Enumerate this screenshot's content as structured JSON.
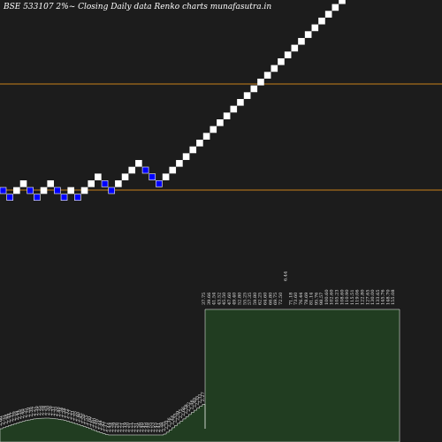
{
  "header": {
    "title": "BSE 533107 2%~ Closing Daily data Renko charts munafasutra.in"
  },
  "colors": {
    "background": "#1c1c1c",
    "up_brick": "#ffffff",
    "down_brick": "#0000ff",
    "reference_line": "#c77f1a",
    "volume_fill": "#213d21",
    "volume_stroke": "#ffffff"
  },
  "chart_data": {
    "type": "renko",
    "title": "BSE 533107 2%~ Closing Daily data Renko charts munafasutra.in",
    "brick_size_pct": 2,
    "reference_lines": [
      {
        "value": "upper"
      },
      {
        "value": "lower"
      }
    ],
    "bricks": [
      {
        "level": 0,
        "direction": "down"
      },
      {
        "level": -1,
        "direction": "down"
      },
      {
        "level": 0,
        "direction": "up"
      },
      {
        "level": 1,
        "direction": "up"
      },
      {
        "level": 0,
        "direction": "down"
      },
      {
        "level": -1,
        "direction": "down"
      },
      {
        "level": 0,
        "direction": "up"
      },
      {
        "level": 1,
        "direction": "up"
      },
      {
        "level": 0,
        "direction": "down"
      },
      {
        "level": -1,
        "direction": "down"
      },
      {
        "level": 0,
        "direction": "up"
      },
      {
        "level": -1,
        "direction": "down"
      },
      {
        "level": 0,
        "direction": "up"
      },
      {
        "level": 1,
        "direction": "up"
      },
      {
        "level": 2,
        "direction": "up"
      },
      {
        "level": 1,
        "direction": "down"
      },
      {
        "level": 0,
        "direction": "down"
      },
      {
        "level": 1,
        "direction": "up"
      },
      {
        "level": 2,
        "direction": "up"
      },
      {
        "level": 3,
        "direction": "up"
      },
      {
        "level": 4,
        "direction": "up"
      },
      {
        "level": 3,
        "direction": "down"
      },
      {
        "level": 2,
        "direction": "down"
      },
      {
        "level": 1,
        "direction": "down"
      },
      {
        "level": 2,
        "direction": "up"
      },
      {
        "level": 3,
        "direction": "up"
      },
      {
        "level": 4,
        "direction": "up"
      },
      {
        "level": 5,
        "direction": "up"
      },
      {
        "level": 6,
        "direction": "up"
      },
      {
        "level": 7,
        "direction": "up"
      },
      {
        "level": 8,
        "direction": "up"
      },
      {
        "level": 9,
        "direction": "up"
      },
      {
        "level": 10,
        "direction": "up"
      },
      {
        "level": 11,
        "direction": "up"
      },
      {
        "level": 12,
        "direction": "up"
      },
      {
        "level": 13,
        "direction": "up"
      },
      {
        "level": 14,
        "direction": "up"
      },
      {
        "level": 15,
        "direction": "up"
      },
      {
        "level": 16,
        "direction": "up"
      },
      {
        "level": 17,
        "direction": "up"
      },
      {
        "level": 18,
        "direction": "up"
      },
      {
        "level": 19,
        "direction": "up"
      },
      {
        "level": 20,
        "direction": "up"
      },
      {
        "level": 21,
        "direction": "up"
      },
      {
        "level": 22,
        "direction": "up"
      },
      {
        "level": 23,
        "direction": "up"
      },
      {
        "level": 24,
        "direction": "up"
      },
      {
        "level": 25,
        "direction": "up"
      },
      {
        "level": 26,
        "direction": "up"
      },
      {
        "level": 27,
        "direction": "up"
      },
      {
        "level": 28,
        "direction": "up"
      },
      {
        "level": 29,
        "direction": "up"
      },
      {
        "level": 30,
        "direction": "up"
      },
      {
        "level": 31,
        "direction": "up"
      },
      {
        "level": 32,
        "direction": "up"
      },
      {
        "level": 33,
        "direction": "up"
      },
      {
        "level": 34,
        "direction": "up"
      }
    ],
    "volume_labels": [
      "2.60",
      "2.55",
      "2.48",
      "2.44",
      "2.37",
      "2.39",
      "2.44",
      "2.50",
      "2.40",
      "2.35",
      "2.29",
      "2.30",
      "2.27",
      "2.30",
      "2.35",
      "2.38",
      "2.34",
      "2.30",
      "2.26",
      "2.31",
      "2.35",
      "2.40",
      "2.34",
      "2.38",
      "2.32",
      "2.27",
      "2.31",
      "2.35",
      "2.40",
      "2.45",
      "2.50",
      "2.55",
      "2.60",
      "2.67",
      "2.60",
      "2.50",
      "2.44",
      "2.41",
      "2.37",
      "2.44",
      "2.34",
      "2.29",
      "2.26",
      "2.22",
      "2.21",
      "2.19",
      "2.20",
      "2.21",
      "2.27",
      "2.31",
      "2.36",
      "2.40",
      "2.45",
      "2.48",
      "2.55",
      "2.53",
      "2.45",
      "2.41",
      "2.38",
      "2.35",
      "2.31",
      "2.36",
      "2.44",
      "2.55",
      "2.59",
      "2.75",
      "2.66",
      "2.58",
      "2.52",
      "2.46",
      "2.40",
      "2.35",
      "2.31",
      "2.27",
      "37.75",
      "39.66",
      "41.54",
      "43.52",
      "45.50",
      "47.60",
      "49.40",
      "52.80",
      "55.25",
      "57.35",
      "59.80",
      "62.25",
      "64.60",
      "66.80",
      "69.75",
      "72.50",
      "6.44",
      "71.18",
      "73.60",
      "76.44",
      "78.69",
      "81.14",
      "95.76",
      "98.57",
      "100.60",
      "102.60",
      "105.23",
      "108.60",
      "110.90",
      "115.51",
      "119.06",
      "122.80",
      "127.65",
      "130.00",
      "133.65",
      "145.76",
      "148.70",
      "155.08"
    ]
  }
}
